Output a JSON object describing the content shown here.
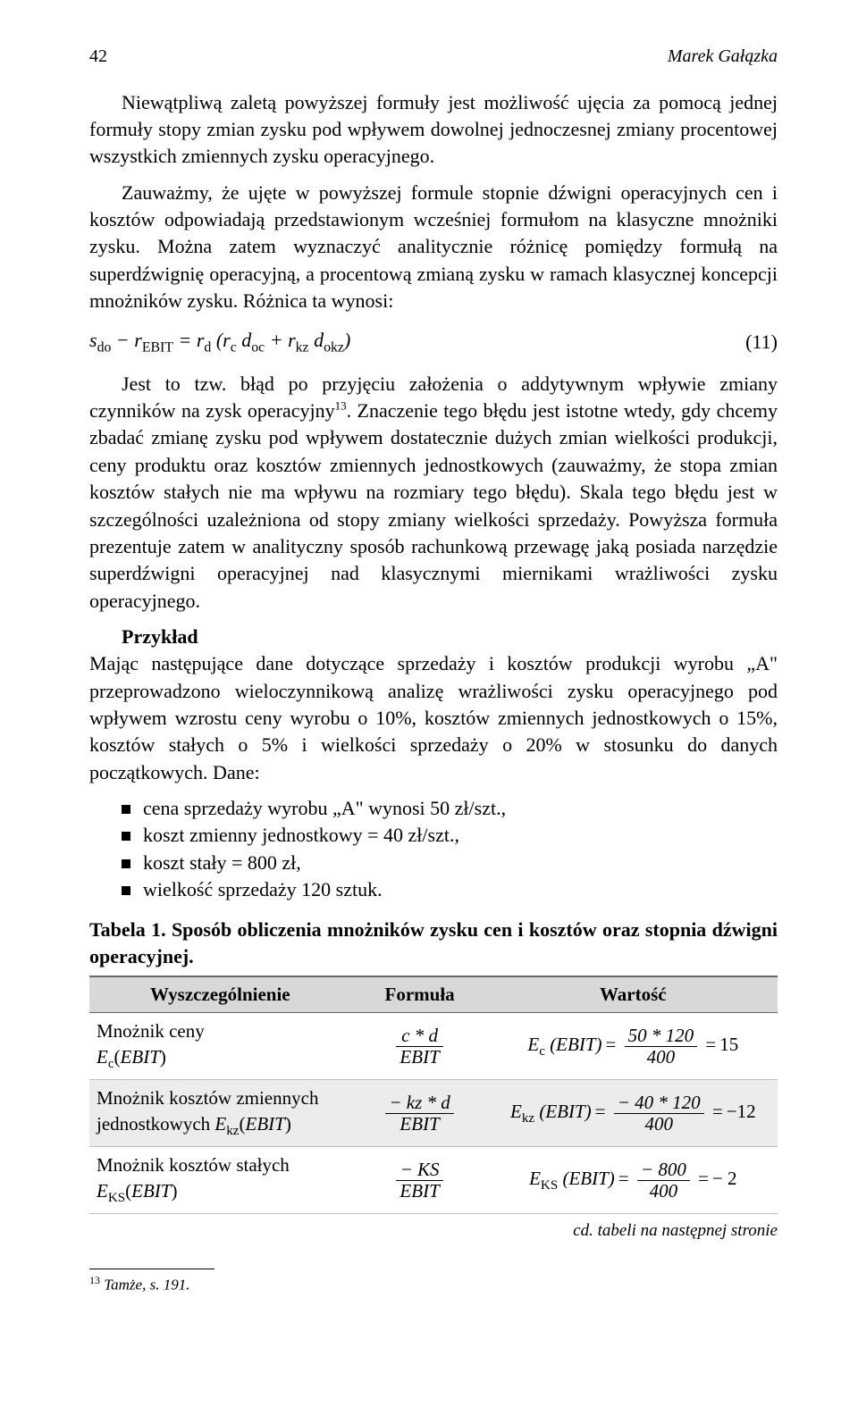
{
  "page": {
    "number": "42",
    "author": "Marek Gałązka"
  },
  "paragraphs": {
    "p1": "Niewątpliwą zaletą powyższej formuły jest możliwość ujęcia za pomocą jednej formuły stopy zmian zysku pod wpływem dowolnej jednoczesnej zmiany procentowej wszystkich zmiennych zysku operacyjnego.",
    "p2": "Zauważmy, że ujęte w powyższej formule stopnie dźwigni operacyjnych cen i kosztów odpowiadają przedstawionym wcześniej formułom na klasyczne mnożniki zysku. Można zatem wyznaczyć analitycznie różnicę pomiędzy formułą na superdźwignię operacyjną, a procentową zmianą zysku w ramach klasycznej koncepcji mnożników zysku. Różnica ta wynosi:",
    "p3a": "Jest to tzw. błąd po przyjęciu założenia o addytywnym wpływie zmiany czynników na zysk operacyjny",
    "p3b": ". Znaczenie tego błędu jest istotne wtedy, gdy chcemy zbadać zmianę zysku pod wpływem dostatecznie dużych zmian wielkości produkcji, ceny produktu oraz kosztów zmiennych jednostkowych (zauważmy, że stopa zmian kosztów stałych nie ma wpływu na rozmiary tego błędu). Skala tego błędu jest w szczególności uzależniona od stopy zmiany wielkości sprzedaży. Powyższa formuła prezentuje zatem w analityczny sposób rachunkową przewagę jaką posiada narzędzie superdźwigni operacyjnej nad klasycznymi miernikami wrażliwości zysku operacyjnego.",
    "example_heading": "Przykład",
    "example_body": "Mając następujące dane dotyczące sprzedaży i kosztów produkcji wyrobu „A\" przeprowadzono wieloczynnikową analizę wrażliwości zysku operacyjnego pod wpływem wzrostu ceny wyrobu o 10%, kosztów zmiennych jednostkowych o 15%, kosztów stałych o 5% i wielkości sprzedaży o 20% w stosunku do danych początkowych. Dane:"
  },
  "formula": {
    "text": "s_do − r_EBIT = r_d (r_c d_oc + r_kz d_okz)",
    "number": "(11)"
  },
  "bullets": [
    "cena sprzedaży wyrobu „A\" wynosi 50 zł/szt.,",
    "koszt zmienny jednostkowy = 40 zł/szt.,",
    "koszt stały = 800 zł,",
    "wielkość sprzedaży 120 sztuk."
  ],
  "table": {
    "caption": "Tabela 1. Sposób obliczenia mnożników zysku cen i kosztów oraz stopnia dźwigni operacyjnej.",
    "headers": [
      "Wyszczególnienie",
      "Formuła",
      "Wartość"
    ],
    "rows": [
      {
        "label_main": "Mnożnik ceny",
        "label_sym": "E_c(EBIT)",
        "formula": {
          "num": "c * d",
          "den": "EBIT"
        },
        "value": {
          "lhs": "E_c (EBIT)",
          "num": "50 * 120",
          "den": "400",
          "result": "15"
        }
      },
      {
        "label_main": "Mnożnik kosztów zmiennych",
        "label_sub": "jednostkowych ",
        "label_sym": "E_kz(EBIT)",
        "formula": {
          "num": "− kz * d",
          "den": "EBIT"
        },
        "value": {
          "lhs": "E_kz (EBIT)",
          "num": "− 40 * 120",
          "den": "400",
          "result": "−12"
        }
      },
      {
        "label_main": "Mnożnik kosztów stałych",
        "label_sym": "E_KS(EBIT)",
        "formula": {
          "num": "− KS",
          "den": "EBIT"
        },
        "value": {
          "lhs": "E_KS (EBIT)",
          "num": "− 800",
          "den": "400",
          "result": "− 2"
        }
      }
    ],
    "continuation": "cd. tabeli na następnej stronie"
  },
  "footnote": {
    "num": "13",
    "text": " Tamże, s. 191."
  },
  "styling": {
    "background_color": "#ffffff",
    "text_color": "#000000",
    "header_bg": "#d8d8d8",
    "row_alt_bg": "#ececec",
    "body_fontsize": 22,
    "header_fontsize": 20,
    "footnote_fontsize": 17,
    "table_fontsize": 21,
    "font_family": "Times New Roman"
  }
}
